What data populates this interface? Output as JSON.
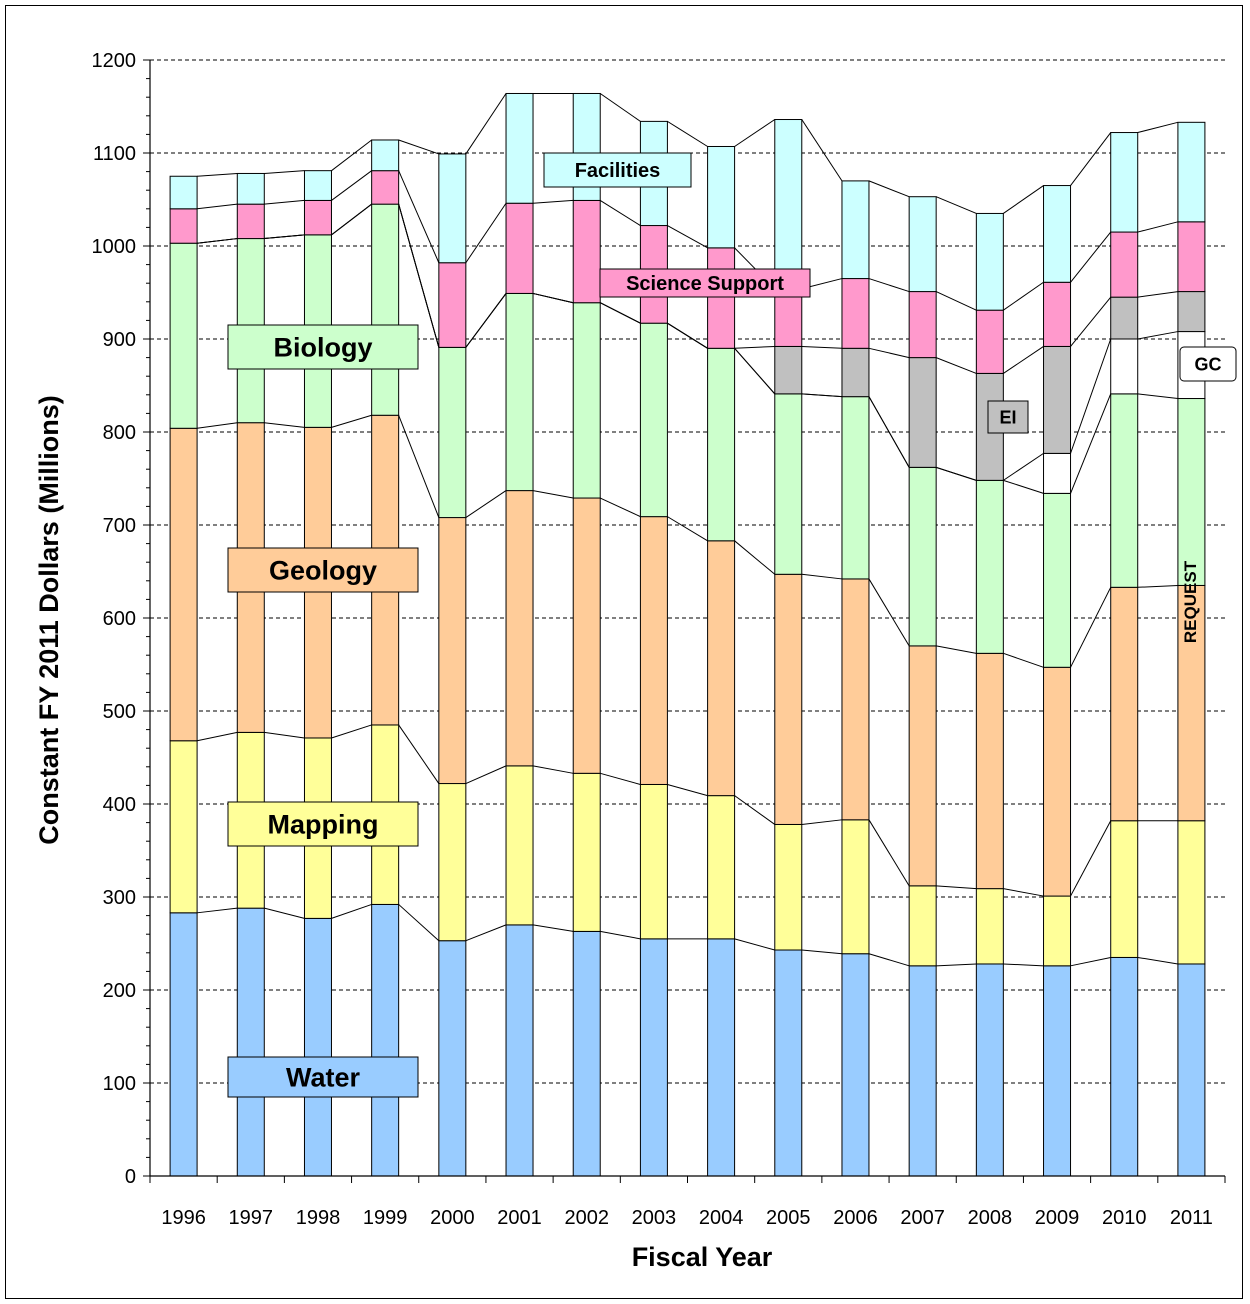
{
  "chart_data": {
    "type": "bar",
    "stacked": true,
    "title": "",
    "xlabel": "Fiscal Year",
    "ylabel": "Constant FY 2011 Dollars (Millions)",
    "ylim": [
      0,
      1200
    ],
    "yticks": [
      0,
      100,
      200,
      300,
      400,
      500,
      600,
      700,
      800,
      900,
      1000,
      1100,
      1200
    ],
    "grid": "horizontal dashed",
    "categories": [
      "1996",
      "1997",
      "1998",
      "1999",
      "2000",
      "2001",
      "2002",
      "2003",
      "2004",
      "2005",
      "2006",
      "2007",
      "2008",
      "2009",
      "2010",
      "2011"
    ],
    "series": [
      {
        "name": "Water",
        "color": "#99ccff",
        "values": [
          283,
          288,
          277,
          292,
          253,
          270,
          263,
          255,
          255,
          243,
          239,
          226,
          228,
          226,
          235,
          228
        ]
      },
      {
        "name": "Mapping",
        "color": "#ffff99",
        "values": [
          185,
          189,
          194,
          193,
          169,
          171,
          170,
          166,
          154,
          135,
          144,
          86,
          81,
          75,
          147,
          154
        ]
      },
      {
        "name": "Geology",
        "color": "#ffcc99",
        "values": [
          336,
          333,
          334,
          333,
          286,
          296,
          296,
          288,
          274,
          269,
          259,
          258,
          253,
          246,
          251,
          253
        ]
      },
      {
        "name": "Biology",
        "color": "#ccffcc",
        "values": [
          199,
          198,
          207,
          227,
          183,
          212,
          210,
          208,
          207,
          194,
          196,
          192,
          186,
          187,
          208,
          201
        ]
      },
      {
        "name": "GC",
        "color": "#ffffff",
        "values": [
          0,
          0,
          0,
          0,
          0,
          0,
          0,
          0,
          0,
          0,
          0,
          0,
          0,
          43,
          59,
          72
        ]
      },
      {
        "name": "EI",
        "color": "#c0c0c0",
        "values": [
          0,
          0,
          0,
          0,
          0,
          0,
          0,
          0,
          0,
          51,
          52,
          118,
          115,
          115,
          45,
          43
        ]
      },
      {
        "name": "Science Support",
        "color": "#ff99cc",
        "values": [
          37,
          37,
          37,
          36,
          91,
          97,
          110,
          105,
          108,
          62,
          75,
          71,
          68,
          69,
          70,
          75
        ]
      },
      {
        "name": "Facilities",
        "color": "#ccffff",
        "values": [
          35,
          33,
          32,
          33,
          117,
          118,
          115,
          112,
          109,
          182,
          105,
          102,
          104,
          104,
          107,
          107
        ]
      }
    ],
    "annotations": {
      "request": "REQUEST"
    }
  },
  "labels": {
    "Water": "Water",
    "Mapping": "Mapping",
    "Geology": "Geology",
    "Biology": "Biology",
    "Facilities": "Facilities",
    "Science Support": "Science Support",
    "EI": "EI",
    "GC": "GC"
  }
}
